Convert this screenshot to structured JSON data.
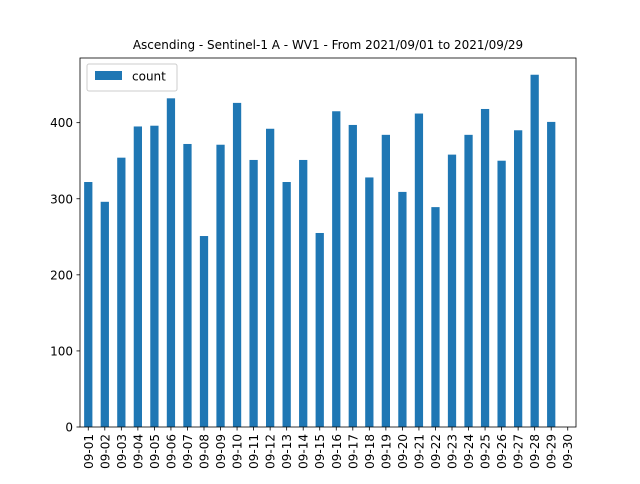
{
  "chart_data": {
    "type": "bar",
    "title": "Ascending - Sentinel-1 A - WV1 - From 2021/09/01 to 2021/09/29",
    "xlabel": "",
    "ylabel": "",
    "categories": [
      "09-01",
      "09-02",
      "09-03",
      "09-04",
      "09-05",
      "09-06",
      "09-07",
      "09-08",
      "09-09",
      "09-10",
      "09-11",
      "09-12",
      "09-13",
      "09-14",
      "09-15",
      "09-16",
      "09-17",
      "09-18",
      "09-19",
      "09-20",
      "09-21",
      "09-22",
      "09-23",
      "09-24",
      "09-25",
      "09-26",
      "09-27",
      "09-28",
      "09-29",
      "09-30"
    ],
    "series": [
      {
        "name": "count",
        "color": "#1f77b4",
        "values": [
          322,
          296,
          354,
          395,
          396,
          432,
          372,
          251,
          371,
          426,
          351,
          392,
          322,
          351,
          255,
          415,
          397,
          328,
          384,
          309,
          412,
          289,
          358,
          384,
          418,
          350,
          390,
          463,
          401,
          0
        ]
      }
    ],
    "ylim": [
      0,
      485
    ],
    "yticks": [
      0,
      100,
      200,
      300,
      400
    ],
    "grid": false,
    "legend_position": "upper left"
  }
}
